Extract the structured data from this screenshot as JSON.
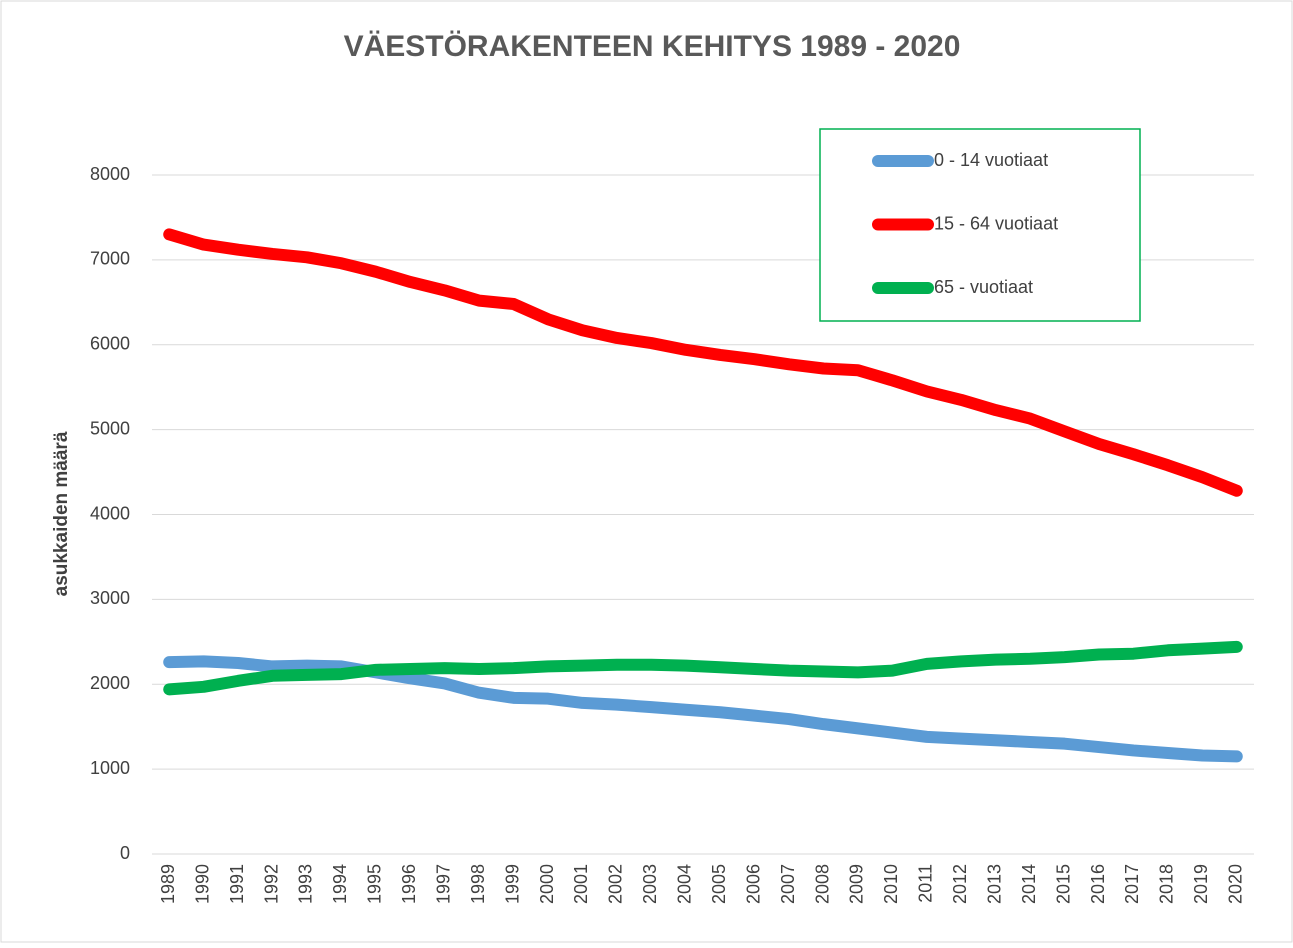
{
  "chart_data": {
    "type": "line",
    "title": "VÄESTÖRAKENTEEN KEHITYS 1989 - 2020",
    "y_label": "asukkaiden määrä",
    "categories": [
      "1989",
      "1990",
      "1991",
      "1992",
      "1993",
      "1994",
      "1995",
      "1996",
      "1997",
      "1998",
      "1999",
      "2000",
      "2001",
      "2002",
      "2003",
      "2004",
      "2005",
      "2006",
      "2007",
      "2008",
      "2009",
      "2010",
      "2011",
      "2012",
      "2013",
      "2014",
      "2015",
      "2016",
      "2017",
      "2018",
      "2019",
      "2020"
    ],
    "series": [
      {
        "name": "0 - 14 vuotiaat",
        "color": "#5b9bd5",
        "values": [
          2260,
          2270,
          2250,
          2210,
          2220,
          2210,
          2140,
          2070,
          2010,
          1900,
          1840,
          1830,
          1780,
          1760,
          1730,
          1700,
          1670,
          1630,
          1590,
          1530,
          1480,
          1430,
          1380,
          1360,
          1340,
          1320,
          1300,
          1260,
          1220,
          1190,
          1160,
          1150
        ]
      },
      {
        "name": "15 - 64 vuotiaat",
        "color": "#ff0000",
        "values": [
          7300,
          7180,
          7120,
          7070,
          7030,
          6960,
          6860,
          6740,
          6640,
          6520,
          6480,
          6300,
          6170,
          6080,
          6020,
          5940,
          5880,
          5830,
          5770,
          5720,
          5700,
          5580,
          5450,
          5350,
          5230,
          5130,
          4980,
          4830,
          4710,
          4580,
          4440,
          4280
        ]
      },
      {
        "name": "65 - vuotiaat",
        "color": "#00b050",
        "values": [
          1940,
          1970,
          2040,
          2100,
          2110,
          2120,
          2170,
          2180,
          2190,
          2180,
          2190,
          2210,
          2220,
          2230,
          2230,
          2220,
          2200,
          2180,
          2160,
          2150,
          2140,
          2160,
          2240,
          2270,
          2290,
          2300,
          2320,
          2350,
          2360,
          2400,
          2420,
          2440
        ]
      }
    ],
    "ylim": [
      0,
      8000
    ],
    "yticks": [
      0,
      1000,
      2000,
      3000,
      4000,
      5000,
      6000,
      7000,
      8000
    ],
    "grid": true,
    "legend": "top-right"
  }
}
